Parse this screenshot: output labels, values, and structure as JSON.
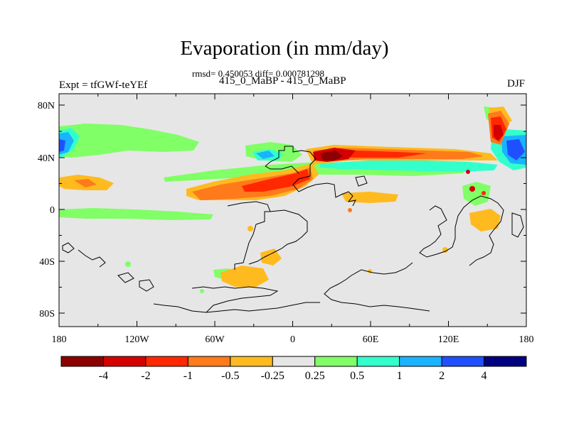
{
  "header": {
    "title": "Evaporation (in mm/day)",
    "stats": "rmsd= 0.450053 diff= 0.000781298",
    "left_label": "Expt = tfGWf-teYEf",
    "center_label": "415_0_MaBP - 415_0_MaBP",
    "right_label": "DJF"
  },
  "map": {
    "y_ticks": [
      "80N",
      "40N",
      "0",
      "40S",
      "80S"
    ],
    "x_ticks": [
      "180",
      "120W",
      "60W",
      "0",
      "60E",
      "120E",
      "180"
    ],
    "background_color": "#e6e6e6"
  },
  "colorbar": {
    "colors": [
      "#8b0000",
      "#d40000",
      "#ff2800",
      "#ff7a1a",
      "#ffba1f",
      "#e6e6e6",
      "#80ff66",
      "#33ffcc",
      "#19b3ff",
      "#1f50ff",
      "#000080"
    ],
    "labels": [
      "-4",
      "-2",
      "-1",
      "-0.5",
      "-0.25",
      "0.25",
      "0.5",
      "1",
      "2",
      "4"
    ]
  }
}
